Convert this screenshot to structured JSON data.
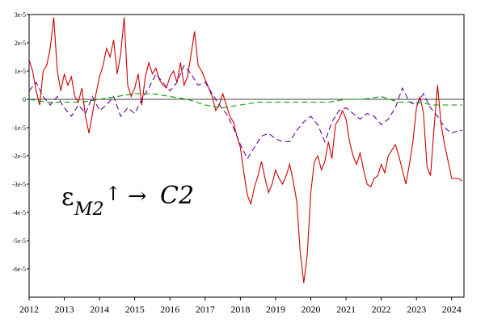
{
  "chart_data": {
    "type": "line",
    "title": "",
    "xlabel": "",
    "ylabel": "",
    "xlim": [
      2012.0,
      2024.35
    ],
    "ylim": [
      -7e-05,
      3e-05
    ],
    "xticks": [
      2012,
      2013,
      2014,
      2015,
      2016,
      2017,
      2018,
      2019,
      2020,
      2021,
      2022,
      2023,
      2024
    ],
    "xtick_labels": [
      "2012",
      "2013",
      "2014",
      "2015",
      "2016",
      "2017",
      "2018",
      "2019",
      "2020",
      "2021",
      "2022",
      "2023",
      "2024"
    ],
    "yticks": [
      3e-05,
      2e-05,
      1e-05,
      0,
      -1e-05,
      -2e-05,
      -3e-05,
      -4e-05,
      -5e-05,
      -6e-05
    ],
    "ytick_labels": [
      "3e-5",
      "2e-5",
      "1e-5",
      "0",
      "-1e-5",
      "-2e-5",
      "-3e-5",
      "-4e-5",
      "-5e-5",
      "-6e-5"
    ],
    "grid": false,
    "zero_line": true,
    "annotation": {
      "epsilon": "ε",
      "subscript": "M2",
      "arrow": "↑",
      "relation": "→",
      "target": "C2"
    },
    "series": [
      {
        "color": "#cc0000",
        "style": "solid",
        "x": [
          2012.0,
          2012.1,
          2012.2,
          2012.3,
          2012.4,
          2012.5,
          2012.6,
          2012.7,
          2012.8,
          2012.9,
          2013.0,
          2013.1,
          2013.2,
          2013.3,
          2013.4,
          2013.5,
          2013.6,
          2013.7,
          2013.8,
          2013.9,
          2014.0,
          2014.1,
          2014.2,
          2014.3,
          2014.4,
          2014.5,
          2014.6,
          2014.7,
          2014.8,
          2014.9,
          2015.0,
          2015.1,
          2015.2,
          2015.3,
          2015.4,
          2015.5,
          2015.6,
          2015.7,
          2015.8,
          2015.9,
          2016.0,
          2016.1,
          2016.2,
          2016.3,
          2016.4,
          2016.5,
          2016.6,
          2016.7,
          2016.8,
          2016.9,
          2017.0,
          2017.1,
          2017.2,
          2017.3,
          2017.4,
          2017.5,
          2017.6,
          2017.7,
          2017.8,
          2017.9,
          2018.0,
          2018.1,
          2018.2,
          2018.3,
          2018.4,
          2018.5,
          2018.6,
          2018.7,
          2018.8,
          2018.9,
          2019.0,
          2019.1,
          2019.2,
          2019.3,
          2019.4,
          2019.5,
          2019.6,
          2019.7,
          2019.8,
          2019.9,
          2020.0,
          2020.1,
          2020.2,
          2020.3,
          2020.4,
          2020.5,
          2020.6,
          2020.7,
          2020.8,
          2020.9,
          2021.0,
          2021.1,
          2021.2,
          2021.3,
          2021.4,
          2021.5,
          2021.6,
          2021.7,
          2021.8,
          2021.9,
          2022.0,
          2022.1,
          2022.2,
          2022.3,
          2022.4,
          2022.5,
          2022.6,
          2022.7,
          2022.8,
          2022.9,
          2023.0,
          2023.1,
          2023.2,
          2023.3,
          2023.4,
          2023.5,
          2023.6,
          2023.7,
          2023.8,
          2023.9,
          2024.0,
          2024.1,
          2024.2,
          2024.3
        ],
        "y": [
          1.4e-05,
          1e-05,
          3e-06,
          -2e-06,
          1e-05,
          1.2e-05,
          1.8e-05,
          2.9e-05,
          1e-05,
          3e-06,
          9e-06,
          5e-06,
          8e-06,
          1e-06,
          -1e-06,
          4e-06,
          -6e-06,
          -1.2e-05,
          -5e-06,
          2e-06,
          8e-06,
          1.2e-05,
          1.8e-05,
          1.5e-05,
          2.1e-05,
          9e-06,
          1.6e-05,
          2.9e-05,
          5e-06,
          1e-06,
          4e-06,
          9e-06,
          -2e-06,
          8e-06,
          1.3e-05,
          9e-06,
          1.1e-05,
          7e-06,
          5e-06,
          4e-06,
          8e-06,
          1e-05,
          6e-06,
          1.3e-05,
          5e-06,
          8e-06,
          1.6e-05,
          2.4e-05,
          1.2e-05,
          1e-05,
          7e-06,
          4e-06,
          1e-06,
          -4e-06,
          -2e-06,
          2e-06,
          -2e-06,
          -6e-06,
          -8e-06,
          -1.3e-05,
          -1.7e-05,
          -2.6e-05,
          -3.4e-05,
          -3.7e-05,
          -3.1e-05,
          -2.7e-05,
          -2.2e-05,
          -2.8e-05,
          -3.3e-05,
          -3e-05,
          -2.5e-05,
          -2.8e-05,
          -3e-05,
          -2.7e-05,
          -2.3e-05,
          -2.9e-05,
          -3.6e-05,
          -5.4e-05,
          -6.5e-05,
          -5.5e-05,
          -3.3e-05,
          -2.2e-05,
          -2e-05,
          -2.5e-05,
          -2.2e-05,
          -1.5e-05,
          -2.1e-05,
          -9e-06,
          -7e-06,
          -4e-06,
          -7e-06,
          -1.5e-05,
          -2e-05,
          -2.3e-05,
          -1.9e-05,
          -2.5e-05,
          -3e-05,
          -3.1e-05,
          -2.8e-05,
          -2.7e-05,
          -2.3e-05,
          -2.6e-05,
          -2e-05,
          -1.8e-05,
          -1.6e-05,
          -2e-05,
          -2.5e-05,
          -3e-05,
          -2.3e-05,
          -1.5e-05,
          -3e-06,
          1e-06,
          -5e-06,
          -2.4e-05,
          -2.7e-05,
          -1e-05,
          5e-06,
          -9e-06,
          -1.6e-05,
          -2.2e-05,
          -2.8e-05,
          -2.8e-05,
          -2.8e-05,
          -2.9e-05
        ]
      },
      {
        "color": "#660099",
        "style": "dash",
        "x": [
          2012.0,
          2012.2,
          2012.4,
          2012.6,
          2012.8,
          2013.0,
          2013.2,
          2013.4,
          2013.6,
          2013.8,
          2014.0,
          2014.2,
          2014.4,
          2014.6,
          2014.8,
          2015.0,
          2015.2,
          2015.4,
          2015.6,
          2015.8,
          2016.0,
          2016.2,
          2016.4,
          2016.6,
          2016.8,
          2017.0,
          2017.2,
          2017.4,
          2017.6,
          2017.8,
          2018.0,
          2018.2,
          2018.4,
          2018.6,
          2018.8,
          2019.0,
          2019.2,
          2019.4,
          2019.6,
          2019.8,
          2020.0,
          2020.2,
          2020.4,
          2020.6,
          2020.8,
          2021.0,
          2021.2,
          2021.4,
          2021.6,
          2021.8,
          2022.0,
          2022.2,
          2022.4,
          2022.6,
          2022.8,
          2023.0,
          2023.2,
          2023.4,
          2023.6,
          2023.8,
          2024.0,
          2024.2,
          2024.3
        ],
        "y": [
          3e-06,
          6e-06,
          1e-06,
          -2e-06,
          1e-06,
          -3e-06,
          -6e-06,
          -2e-06,
          -5e-06,
          1e-06,
          -4e-06,
          -2e-06,
          1e-06,
          -6e-06,
          -3e-06,
          -5e-06,
          0.0,
          4e-06,
          9e-06,
          6e-06,
          3e-06,
          6e-06,
          1.2e-05,
          9e-06,
          5e-06,
          6e-06,
          2e-06,
          -2e-06,
          -5e-06,
          -1e-05,
          -1.6e-05,
          -2.1e-05,
          -1.7e-05,
          -1.3e-05,
          -1.2e-05,
          -1.4e-05,
          -1.5e-05,
          -1.5e-05,
          -1.1e-05,
          -8e-06,
          -6e-06,
          -9e-06,
          -1.5e-05,
          -8e-06,
          -4e-06,
          -3e-06,
          -5e-06,
          -7e-06,
          -5e-06,
          -6e-06,
          -9e-06,
          -7e-06,
          -3e-06,
          4e-06,
          -1e-06,
          -2e-06,
          2e-06,
          -3e-06,
          -6e-06,
          -1e-05,
          -1.2e-05,
          -1.1e-05,
          -1.1e-05
        ]
      },
      {
        "color": "#009900",
        "style": "dash",
        "x": [
          2012.0,
          2012.5,
          2013.0,
          2013.5,
          2014.0,
          2014.5,
          2015.0,
          2015.5,
          2016.0,
          2016.5,
          2017.0,
          2017.5,
          2018.0,
          2018.5,
          2019.0,
          2019.5,
          2020.0,
          2020.5,
          2021.0,
          2021.5,
          2022.0,
          2022.5,
          2023.0,
          2023.5,
          2024.0,
          2024.3
        ],
        "y": [
          0.0,
          -1e-06,
          -1e-06,
          -1e-06,
          0.0,
          1e-06,
          2e-06,
          2e-06,
          1e-06,
          0.0,
          -2e-06,
          -3e-06,
          -2e-06,
          -1e-06,
          -1e-06,
          -1e-06,
          -1e-06,
          -1e-06,
          0.0,
          0.0,
          1e-06,
          -1e-06,
          -1e-06,
          -2e-06,
          -2e-06,
          -2e-06
        ]
      }
    ]
  }
}
